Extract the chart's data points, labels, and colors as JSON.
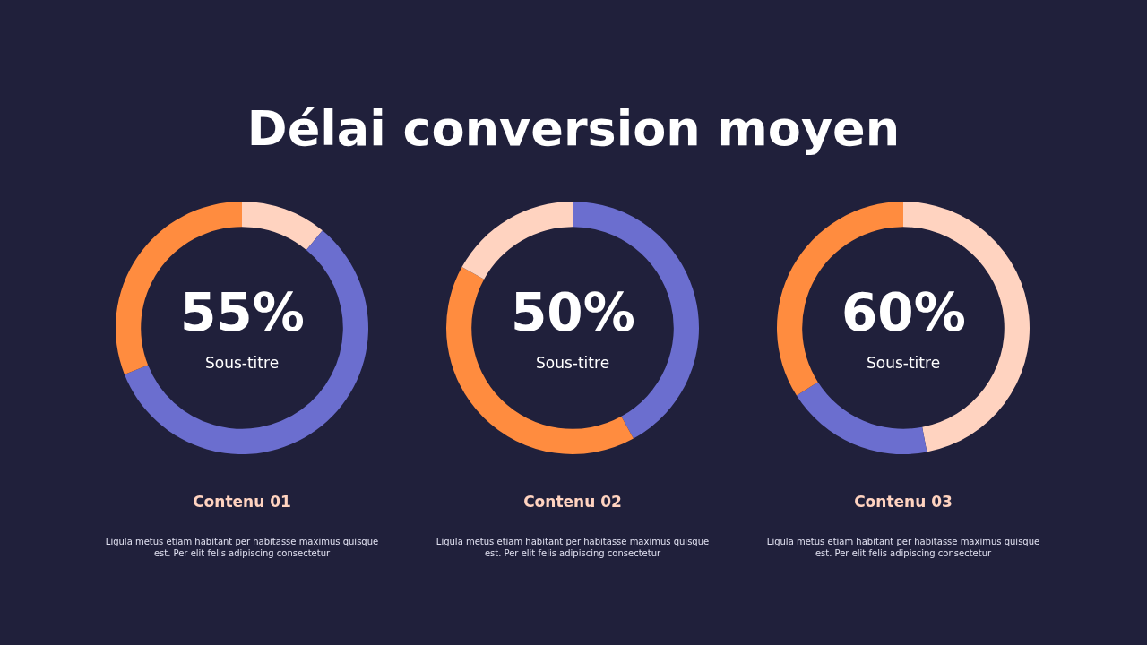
{
  "chart_data": [
    {
      "type": "donut",
      "title": "Délai conversion moyen",
      "subtitle": "Contenu 01",
      "categories": [
        null,
        null,
        null
      ],
      "values": [
        11,
        58,
        31
      ],
      "colors": [
        "#ffd3c0",
        "#6b6ecf",
        "#ff8c3f"
      ],
      "legend": false,
      "annotations": [
        "55%",
        "Sous-titre",
        "Ligula metus etiam habitant per habitasse maximus quisque est. Per elit felis adipiscing consectetur"
      ]
    },
    {
      "type": "donut",
      "subtitle": "Contenu 02",
      "categories": [
        null,
        null,
        null
      ],
      "values": [
        42,
        41,
        17
      ],
      "colors": [
        "#6b6ecf",
        "#ff8c3f",
        "#ffd3c0"
      ],
      "legend": false,
      "annotations": [
        "50%",
        "Sous-titre",
        "Ligula metus etiam habitant per habitasse maximus quisque est. Per elit felis adipiscing consectetur"
      ]
    },
    {
      "type": "donut",
      "subtitle": "Contenu 03",
      "categories": [
        null,
        null,
        null
      ],
      "values": [
        47,
        19,
        34
      ],
      "colors": [
        "#ffd3c0",
        "#6b6ecf",
        "#ff8c3f"
      ],
      "legend": false,
      "annotations": [
        "60%",
        "Sous-titre",
        "Ligula metus etiam habitant per habitasse maximus quisque est. Per elit felis adipiscing consectetur"
      ]
    }
  ]
}
